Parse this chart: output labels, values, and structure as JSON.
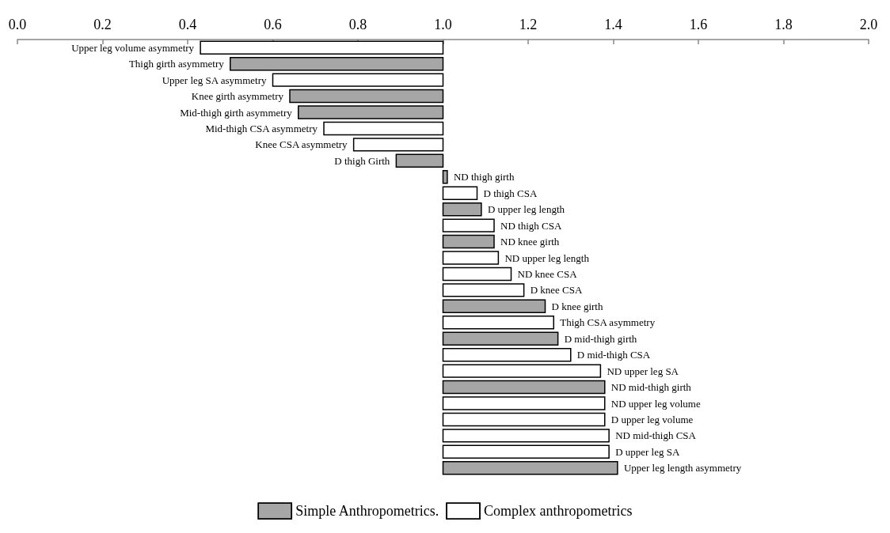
{
  "chart_data": {
    "type": "bar",
    "orientation": "horizontal",
    "categories": [
      "Upper leg volume asymmetry",
      "Thigh girth asymmetry",
      "Upper leg SA asymmetry",
      "Knee girth asymmetry",
      "Mid-thigh girth asymmetry",
      "Mid-thigh CSA asymmetry",
      "Knee CSA asymmetry",
      "D thigh Girth",
      "ND thigh girth",
      "D thigh CSA",
      "D upper leg length",
      "ND thigh CSA",
      "ND knee girth",
      "ND upper leg length",
      "ND knee CSA",
      "D knee CSA",
      "D knee girth",
      "Thigh CSA asymmetry",
      "D mid-thigh girth",
      "D mid-thigh CSA",
      "ND upper leg SA",
      "ND mid-thigh girth",
      "ND upper leg volume",
      "D upper leg volume",
      "ND mid-thigh CSA",
      "D upper leg SA",
      "Upper leg length asymmetry"
    ],
    "series": [
      {
        "name": "Simple Anthropometrics.",
        "color": "#a6a6a6",
        "base": [
          null,
          1,
          null,
          1,
          1,
          null,
          null,
          1,
          1,
          null,
          1,
          null,
          1,
          null,
          null,
          null,
          1,
          null,
          1,
          null,
          null,
          1,
          null,
          null,
          null,
          null,
          1
        ],
        "values": [
          null,
          -0.5,
          null,
          -0.36,
          -0.34,
          null,
          null,
          -0.11,
          0.01,
          null,
          0.09,
          null,
          0.12,
          null,
          null,
          null,
          0.24,
          null,
          0.27,
          null,
          null,
          0.38,
          null,
          null,
          null,
          null,
          0.41
        ]
      },
      {
        "name": "Complex anthropometrics",
        "color": "#ffffff",
        "base": [
          1,
          null,
          1,
          null,
          null,
          1,
          1,
          null,
          null,
          1,
          null,
          1,
          null,
          1,
          1,
          1,
          null,
          1,
          null,
          1,
          1,
          null,
          1,
          1,
          1,
          1,
          null
        ],
        "values": [
          -0.57,
          null,
          -0.4,
          null,
          null,
          -0.28,
          -0.21,
          null,
          null,
          0.08,
          null,
          0.12,
          null,
          0.13,
          0.16,
          0.19,
          null,
          0.26,
          null,
          0.3,
          0.37,
          null,
          0.38,
          0.38,
          0.39,
          0.39,
          null
        ]
      }
    ],
    "xlim": [
      0,
      2
    ],
    "xticks": [
      {
        "value": 0,
        "label": "0.0"
      },
      {
        "value": 0.2,
        "label": "0.2"
      },
      {
        "value": 0.4,
        "label": "0.4"
      },
      {
        "value": 0.6,
        "label": "0.6"
      },
      {
        "value": 0.8,
        "label": "0.8"
      },
      {
        "value": 1,
        "label": "1.0"
      },
      {
        "value": 1.2,
        "label": "1.2"
      },
      {
        "value": 1.4,
        "label": "1.4"
      },
      {
        "value": 1.6,
        "label": "1.6"
      },
      {
        "value": 1.8,
        "label": "1.8"
      },
      {
        "value": 2,
        "label": "2.0"
      }
    ],
    "grid": false,
    "legend": "bottom"
  }
}
